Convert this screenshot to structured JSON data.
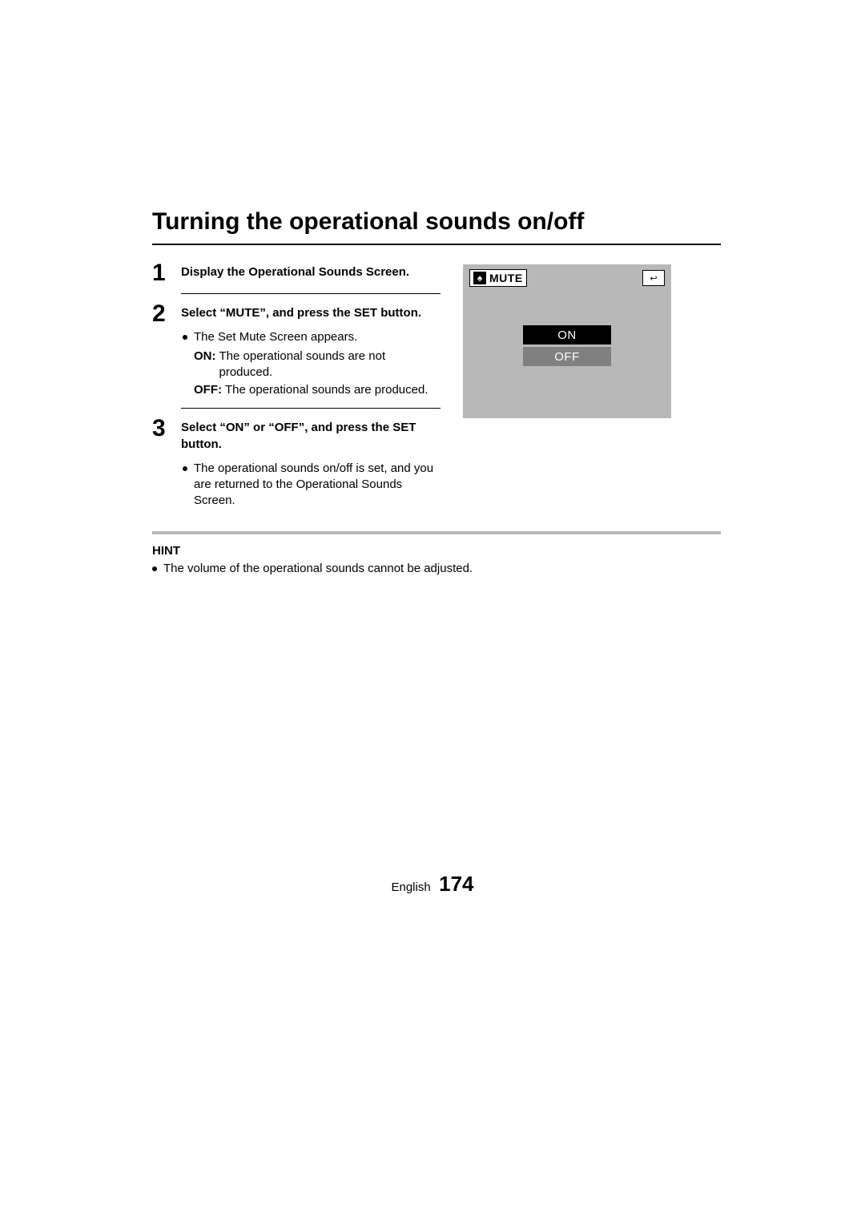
{
  "title": "Turning the operational sounds on/off",
  "steps": [
    {
      "num": "1",
      "heading": "Display the Operational Sounds Screen."
    },
    {
      "num": "2",
      "heading": "Select “MUTE”, and press the SET button.",
      "bullets": [
        "The Set Mute Screen appears."
      ],
      "defs": [
        {
          "label": "ON:",
          "text": "The operational sounds are not produced."
        },
        {
          "label": "OFF:",
          "text": "The operational sounds are produced."
        }
      ]
    },
    {
      "num": "3",
      "heading": "Select “ON” or “OFF”, and press the SET button.",
      "bullets": [
        "The operational sounds on/off is set, and you are returned to the Operational Sounds Screen."
      ]
    }
  ],
  "hint": {
    "label": "HINT",
    "text": "The volume of the operational sounds cannot be adjusted."
  },
  "mute_screen": {
    "title": "MUTE",
    "options": {
      "on": "ON",
      "off": "OFF"
    },
    "colors": {
      "bg": "#b8b8b8",
      "on_bg": "#000000",
      "off_bg": "#808080",
      "text": "#ffffff",
      "box_bg": "#ffffff"
    }
  },
  "footer": {
    "language": "English",
    "page": "174"
  }
}
